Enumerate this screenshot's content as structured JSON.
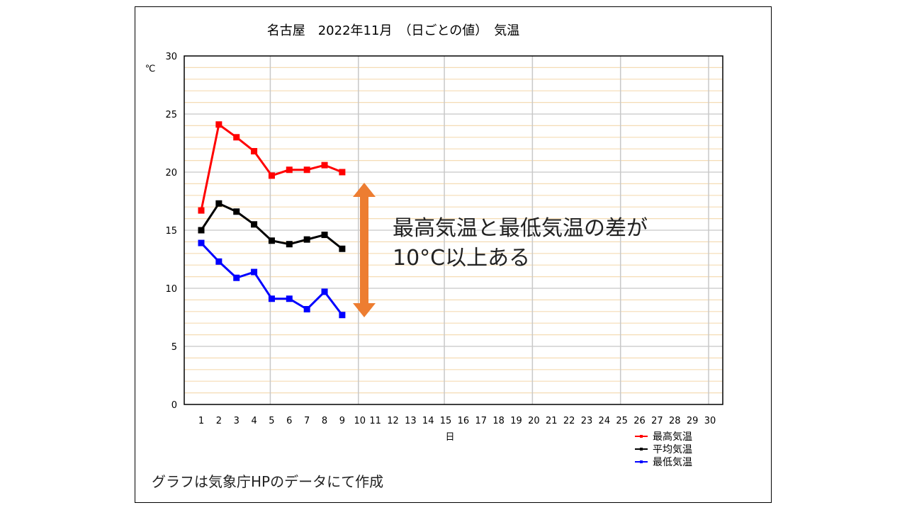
{
  "chart_data": {
    "type": "line",
    "title": "名古屋　2022年11月　（日ごとの値）　気温",
    "xlabel": "日",
    "ylabel": "℃",
    "xlim": [
      1,
      30
    ],
    "ylim": [
      0,
      30
    ],
    "x_ticks": [
      1,
      2,
      3,
      4,
      5,
      6,
      7,
      8,
      9,
      10,
      11,
      12,
      13,
      14,
      15,
      16,
      17,
      18,
      19,
      20,
      21,
      22,
      23,
      24,
      25,
      26,
      27,
      28,
      29,
      30
    ],
    "y_ticks": [
      0,
      5,
      10,
      15,
      20,
      25,
      30
    ],
    "grid": true,
    "legend_position": "bottom-right",
    "x": [
      1,
      2,
      3,
      4,
      5,
      6,
      7,
      8,
      9
    ],
    "series": [
      {
        "name": "最高気温",
        "color": "#ff0000",
        "values": [
          16.7,
          24.1,
          23.0,
          21.8,
          19.7,
          20.2,
          20.2,
          20.6,
          20.0
        ]
      },
      {
        "name": "平均気温",
        "color": "#000000",
        "values": [
          15.0,
          17.3,
          16.6,
          15.5,
          14.1,
          13.8,
          14.2,
          14.6,
          13.4
        ]
      },
      {
        "name": "最低気温",
        "color": "#0000ff",
        "values": [
          13.9,
          12.3,
          10.9,
          11.4,
          9.1,
          9.1,
          8.2,
          9.7,
          7.7
        ]
      }
    ],
    "arrow_color": "#ed7d31"
  },
  "annotation": {
    "line1": "最高気温と最低気温の差が",
    "line2": "10°C以上ある"
  },
  "footer_note": "グラフは気象庁HPのデータにて作成"
}
